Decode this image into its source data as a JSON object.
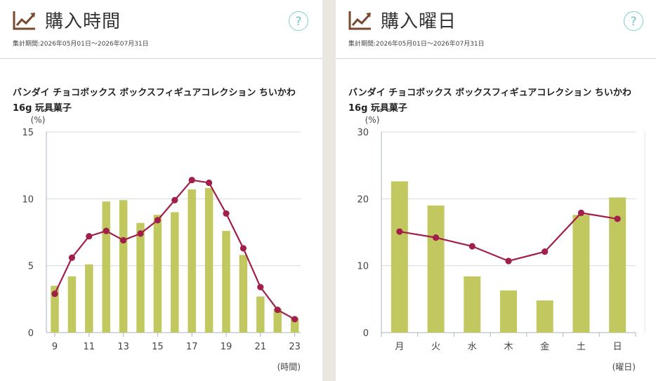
{
  "left": {
    "title": "購入時間",
    "help": "?",
    "period": "集計期間:2026年05月01日〜2026年07月31日",
    "subtitle": "バンダイ チョコボックス ボックスフィギュアコレクション ちいかわ 16g 玩具菓子"
  },
  "right": {
    "title": "購入曜日",
    "help": "?",
    "period": "集計期間:2026年05月01日〜2026年07月31日",
    "subtitle": "バンダイ チョコボックス ボックスフィギュアコレクション ちいかわ 16g 玩具菓子"
  },
  "colors": {
    "bar": "#c2c860",
    "line": "#a0204a",
    "grid": "#d6dbe3",
    "help": "#6cc4c4"
  },
  "icons": {
    "header": "trend-chart-icon"
  },
  "chart_data": [
    {
      "type": "bar",
      "y_unit_label": "(%)",
      "x_unit_label": "(時間)",
      "ylim": [
        0,
        15
      ],
      "yticks": [
        0,
        5,
        10,
        15
      ],
      "x": [
        9,
        10,
        11,
        12,
        13,
        14,
        15,
        16,
        17,
        18,
        19,
        20,
        21,
        22,
        23
      ],
      "xtick_labels": [
        "9",
        "11",
        "13",
        "15",
        "17",
        "19",
        "21",
        "23"
      ],
      "xtick_values": [
        9,
        11,
        13,
        15,
        17,
        19,
        21,
        23
      ],
      "series": [
        {
          "type": "bar",
          "values": [
            3.5,
            4.2,
            5.1,
            9.8,
            9.9,
            8.2,
            8.8,
            9.0,
            10.7,
            10.8,
            7.6,
            5.8,
            2.7,
            1.8,
            1.1
          ]
        },
        {
          "type": "line",
          "values": [
            2.9,
            5.6,
            7.2,
            7.6,
            6.9,
            7.4,
            8.4,
            9.9,
            11.4,
            11.2,
            8.9,
            6.3,
            3.4,
            1.7,
            1.0
          ]
        }
      ],
      "grid": true
    },
    {
      "type": "bar",
      "y_unit_label": "(%)",
      "x_unit_label": "(曜日)",
      "ylim": [
        0,
        30
      ],
      "yticks": [
        0,
        10,
        20,
        30
      ],
      "categories": [
        "月",
        "火",
        "水",
        "木",
        "金",
        "土",
        "日"
      ],
      "series": [
        {
          "type": "bar",
          "values": [
            22.6,
            19.0,
            8.4,
            6.3,
            4.8,
            17.6,
            20.2
          ]
        },
        {
          "type": "line",
          "values": [
            15.1,
            14.2,
            12.9,
            10.7,
            12.1,
            17.9,
            17.0
          ]
        }
      ],
      "grid": true
    }
  ]
}
